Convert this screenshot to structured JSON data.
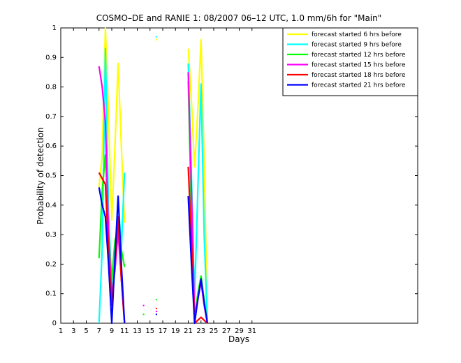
{
  "chart_data": {
    "type": "line",
    "title": "COSMO–DE and RANIE 1: 08/2007 06–12 UTC, 1.0 mm/6h for \"Main\"",
    "xlabel": "Days",
    "ylabel": "Probability of detection",
    "xlim": [
      1,
      31
    ],
    "ylim": [
      0,
      1
    ],
    "x_ticks": [
      1,
      3,
      5,
      7,
      9,
      11,
      13,
      15,
      17,
      19,
      21,
      23,
      25,
      27,
      29,
      31
    ],
    "y_ticks": [
      0,
      0.1,
      0.2,
      0.3,
      0.4,
      0.5,
      0.6,
      0.7,
      0.8,
      0.9,
      1
    ],
    "grid": false,
    "legend_position": "top-right",
    "series": [
      {
        "name": "forecast started 6 hrs before",
        "color": "#ffff00",
        "segments": [
          [
            [
              7,
              0.46
            ],
            [
              7.5,
              0.57
            ],
            [
              8,
              1.0
            ],
            [
              8.5,
              0.7
            ],
            [
              9,
              0.35
            ],
            [
              9.5,
              0.6
            ],
            [
              10,
              0.88
            ],
            [
              10.5,
              0.6
            ],
            [
              11,
              0.34
            ]
          ],
          [
            [
              21,
              0.93
            ],
            [
              21.5,
              0.75
            ],
            [
              22,
              0.53
            ],
            [
              22.5,
              0.72
            ],
            [
              23,
              0.96
            ],
            [
              23.5,
              0.55
            ],
            [
              24,
              0.0
            ]
          ]
        ],
        "points": [
          [
            16,
            0.96
          ]
        ]
      },
      {
        "name": "forecast started 9 hrs before",
        "color": "#00ffff",
        "segments": [
          [
            [
              7,
              0.0
            ],
            [
              7.5,
              0.25
            ],
            [
              8,
              0.93
            ],
            [
              8.5,
              0.38
            ],
            [
              9,
              0.12
            ],
            [
              9.5,
              0.22
            ],
            [
              10,
              0.43
            ],
            [
              10.5,
              0.25
            ],
            [
              11,
              0.51
            ]
          ],
          [
            [
              21,
              0.88
            ],
            [
              21.5,
              0.5
            ],
            [
              22,
              0.08
            ],
            [
              22.5,
              0.45
            ],
            [
              23,
              0.81
            ],
            [
              23.5,
              0.3
            ],
            [
              24,
              0.0
            ]
          ]
        ],
        "points": [
          [
            16,
            0.97
          ]
        ]
      },
      {
        "name": "forecast started 12 hrs before",
        "color": "#00ff00",
        "segments": [
          [
            [
              7,
              0.22
            ],
            [
              7.5,
              0.45
            ],
            [
              8,
              0.57
            ],
            [
              8.5,
              0.3
            ],
            [
              9,
              0.15
            ],
            [
              9.5,
              0.28
            ],
            [
              10,
              0.32
            ],
            [
              10.5,
              0.25
            ],
            [
              11,
              0.19
            ]
          ],
          [
            [
              21,
              0.82
            ],
            [
              21.5,
              0.35
            ],
            [
              22,
              0.02
            ],
            [
              22.5,
              0.1
            ],
            [
              23,
              0.16
            ],
            [
              23.5,
              0.08
            ],
            [
              24,
              0.0
            ]
          ]
        ],
        "points": [
          [
            14,
            0.03
          ],
          [
            16,
            0.08
          ]
        ]
      },
      {
        "name": "forecast started 15 hrs before",
        "color": "#ff00ff",
        "segments": [
          [
            [
              7,
              0.87
            ],
            [
              7.5,
              0.8
            ],
            [
              8,
              0.68
            ],
            [
              8.5,
              0.3
            ],
            [
              9,
              0.09
            ],
            [
              9.5,
              0.18
            ],
            [
              10,
              0.31
            ],
            [
              10.5,
              0.15
            ],
            [
              11,
              0.0
            ]
          ],
          [
            [
              21,
              0.85
            ],
            [
              21.5,
              0.45
            ],
            [
              22,
              0.02
            ],
            [
              22.5,
              0.08
            ],
            [
              23,
              0.14
            ],
            [
              23.5,
              0.06
            ],
            [
              24,
              0.0
            ]
          ]
        ],
        "points": [
          [
            14,
            0.06
          ],
          [
            16,
            0.04
          ]
        ]
      },
      {
        "name": "forecast started 18 hrs before",
        "color": "#ff0000",
        "segments": [
          [
            [
              7,
              0.51
            ],
            [
              7.5,
              0.49
            ],
            [
              8,
              0.47
            ],
            [
              8.5,
              0.25
            ],
            [
              9,
              0.06
            ],
            [
              9.5,
              0.2
            ],
            [
              10,
              0.36
            ],
            [
              10.5,
              0.15
            ],
            [
              11,
              0.0
            ]
          ],
          [
            [
              21,
              0.53
            ],
            [
              21.5,
              0.28
            ],
            [
              22,
              0.0
            ],
            [
              22.5,
              0.01
            ],
            [
              23,
              0.02
            ],
            [
              23.5,
              0.01
            ],
            [
              24,
              0.0
            ]
          ]
        ],
        "points": [
          [
            16,
            0.05
          ]
        ]
      },
      {
        "name": "forecast started 21 hrs before",
        "color": "#0000ff",
        "segments": [
          [
            [
              7,
              0.46
            ],
            [
              7.5,
              0.4
            ],
            [
              8,
              0.36
            ],
            [
              8.5,
              0.2
            ],
            [
              9,
              0.0
            ],
            [
              9.5,
              0.22
            ],
            [
              10,
              0.43
            ],
            [
              10.5,
              0.2
            ],
            [
              11,
              0.0
            ]
          ],
          [
            [
              21,
              0.43
            ],
            [
              21.5,
              0.2
            ],
            [
              22,
              0.0
            ],
            [
              22.5,
              0.08
            ],
            [
              23,
              0.15
            ],
            [
              23.5,
              0.07
            ],
            [
              24,
              0.0
            ]
          ]
        ],
        "points": [
          [
            16,
            0.03
          ]
        ]
      }
    ]
  }
}
